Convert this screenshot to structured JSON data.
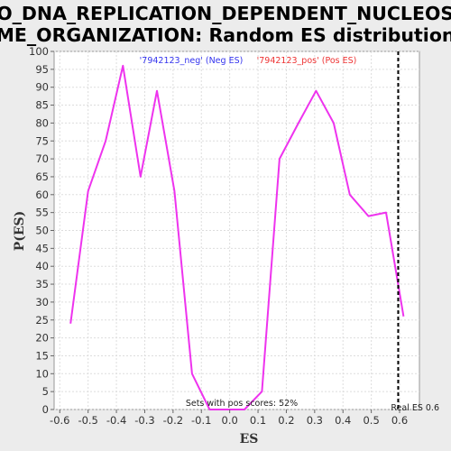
{
  "chart_data": {
    "type": "line",
    "title_lines": [
      "GO_DNA_REPLICATION_DEPENDENT_NUCLEOSO",
      "ME_ORGANIZATION: Random ES distribution"
    ],
    "xlabel": "ES",
    "ylabel": "P(ES)",
    "xlim": [
      -0.62,
      0.67
    ],
    "ylim": [
      0,
      100
    ],
    "x_ticks": [
      "-0.6",
      "-0.5",
      "-0.4",
      "-0.3",
      "-0.2",
      "-0.1",
      "0.0",
      "0.1",
      "0.2",
      "0.3",
      "0.4",
      "0.5",
      "0.6"
    ],
    "y_ticks": [
      "0",
      "5",
      "10",
      "15",
      "20",
      "25",
      "30",
      "35",
      "40",
      "45",
      "50",
      "55",
      "60",
      "65",
      "70",
      "75",
      "80",
      "85",
      "90",
      "95",
      "100"
    ],
    "grid": true,
    "legend": {
      "position": "top-center",
      "entries": [
        {
          "label": "'7942123_neg' (Neg ES)",
          "color": "#3333ee"
        },
        {
          "label": "'7942123_pos' (Pos ES)",
          "color": "#ee3333"
        }
      ]
    },
    "series": [
      {
        "color": "#ee33ee",
        "points": [
          [
            -0.562,
            24
          ],
          [
            -0.5,
            61
          ],
          [
            -0.438,
            75
          ],
          [
            -0.377,
            96
          ],
          [
            -0.315,
            65
          ],
          [
            -0.257,
            89
          ],
          [
            -0.195,
            61
          ],
          [
            -0.133,
            10
          ],
          [
            -0.071,
            0
          ],
          [
            -0.01,
            0
          ],
          [
            0.052,
            0
          ],
          [
            0.114,
            5
          ],
          [
            0.176,
            70
          ],
          [
            0.243,
            80
          ],
          [
            0.305,
            89
          ],
          [
            0.367,
            80
          ],
          [
            0.424,
            60
          ],
          [
            0.49,
            54
          ],
          [
            0.552,
            55
          ],
          [
            0.614,
            26
          ]
        ]
      }
    ],
    "real_es": {
      "value": 0.595,
      "label": "Real ES 0.6"
    },
    "note": "Sets with pos scores: 52%"
  }
}
